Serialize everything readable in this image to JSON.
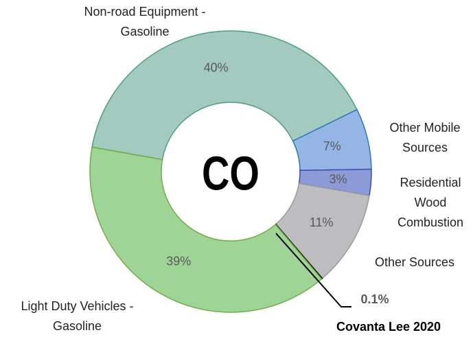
{
  "chart_data": {
    "type": "donut",
    "center_label": "CO",
    "categories": [
      "Non-road Equipment - Gasoline",
      "Other Mobile Sources",
      "Residential Wood Combustion",
      "Other Sources",
      "Covanta Lee 2020",
      "Light Duty Vehicles - Gasoline"
    ],
    "values": [
      40,
      7,
      3,
      11,
      0.1,
      39
    ],
    "value_labels": [
      "40%",
      "7%",
      "3%",
      "11%",
      "0.1%",
      "39%"
    ],
    "colors": [
      "#a2cabe",
      "#95b5e6",
      "#8c9ad8",
      "#bdbdbf",
      "#000000",
      "#9fd497"
    ],
    "edgecolors": [
      "#4a9e82",
      "#2e75b6",
      "#3a4db0",
      "#9a9a9a",
      "#000000",
      "#70ad47"
    ]
  }
}
